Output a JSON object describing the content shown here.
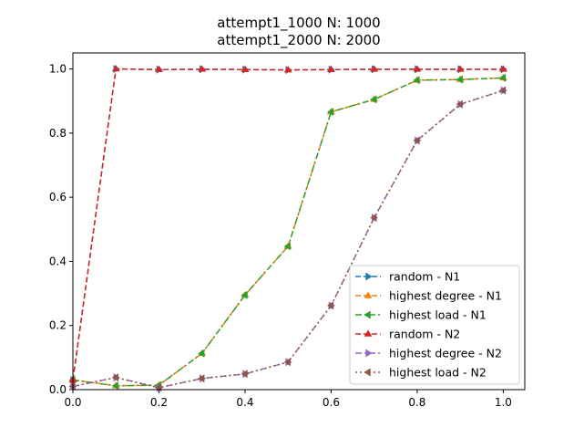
{
  "chart_data": {
    "type": "line",
    "title_lines": [
      "attempt1_1000 N: 1000",
      "attempt1_2000 N: 2000"
    ],
    "xlabel": "",
    "ylabel": "",
    "xlim": [
      0.0,
      1.05
    ],
    "ylim": [
      0.0,
      1.05
    ],
    "xticks": [
      "0.0",
      "0.2",
      "0.4",
      "0.6",
      "0.8",
      "1.0"
    ],
    "yticks": [
      "0.0",
      "0.2",
      "0.4",
      "0.6",
      "0.8",
      "1.0"
    ],
    "grid": false,
    "legend_position": "lower-right",
    "x": [
      0.0,
      0.1,
      0.2,
      0.3,
      0.4,
      0.5,
      0.6,
      0.7,
      0.8,
      0.9,
      1.0
    ],
    "series": [
      {
        "name": "random - N1",
        "color": "#1f77b4",
        "dash": "dashed",
        "marker": "triangle-right",
        "values": [
          0.03,
          1.0,
          0.998,
          0.999,
          0.998,
          0.997,
          0.998,
          0.999,
          0.999,
          0.999,
          0.999
        ]
      },
      {
        "name": "highest degree - N1",
        "color": "#ff7f0e",
        "dash": "dashed",
        "marker": "triangle-up",
        "values": [
          0.03,
          0.012,
          0.014,
          0.113,
          0.295,
          0.447,
          0.866,
          0.905,
          0.965,
          0.967,
          0.972
        ]
      },
      {
        "name": "highest load - N1",
        "color": "#2ca02c",
        "dash": "dotdash",
        "marker": "triangle-left",
        "values": [
          0.03,
          0.012,
          0.014,
          0.113,
          0.295,
          0.447,
          0.866,
          0.905,
          0.965,
          0.967,
          0.972
        ]
      },
      {
        "name": "random - N2",
        "color": "#d62728",
        "dash": "dashed",
        "marker": "triangle-up",
        "values": [
          0.03,
          1.0,
          0.998,
          0.999,
          0.998,
          0.997,
          0.998,
          0.999,
          0.999,
          0.999,
          0.999
        ]
      },
      {
        "name": "highest degree - N2",
        "color": "#9467bd",
        "dash": "dotdash",
        "marker": "triangle-right",
        "values": [
          0.01,
          0.038,
          0.006,
          0.035,
          0.049,
          0.086,
          0.262,
          0.536,
          0.777,
          0.89,
          0.933
        ]
      },
      {
        "name": "highest load - N2",
        "color": "#8c564b",
        "dash": "dotted",
        "marker": "triangle-left",
        "values": [
          0.01,
          0.038,
          0.006,
          0.035,
          0.049,
          0.086,
          0.262,
          0.536,
          0.777,
          0.89,
          0.933
        ]
      }
    ]
  }
}
